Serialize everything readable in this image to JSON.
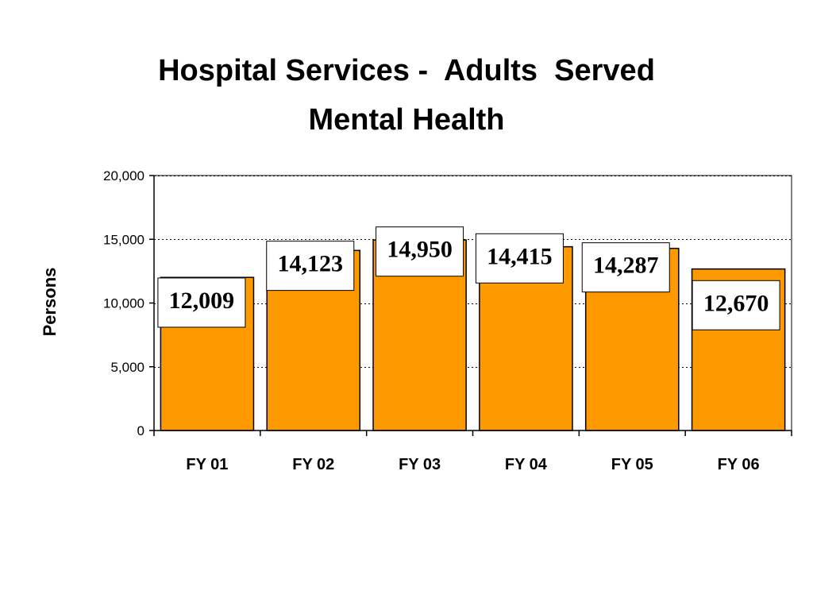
{
  "chart_data": {
    "type": "bar",
    "title_lines": [
      "Hospital Services -  Adults  Served",
      "Mental Health"
    ],
    "ylabel": "Persons",
    "xlabel": "",
    "categories": [
      "FY 01",
      "FY 02",
      "FY 03",
      "FY 04",
      "FY 05",
      "FY 06"
    ],
    "values": [
      12009,
      14123,
      14950,
      14415,
      14287,
      12670
    ],
    "data_labels": [
      "12,009",
      "14,123",
      "14,950",
      "14,415",
      "14,287",
      "12,670"
    ],
    "ylim": [
      0,
      20000
    ],
    "yticks": [
      0,
      5000,
      10000,
      15000,
      20000
    ],
    "ytick_labels": [
      "0",
      "5,000",
      "10,000",
      "15,000",
      "20,000"
    ],
    "grid": "horizontal dotted",
    "legend": "none",
    "colors": {
      "bar_fill": "#ff9900",
      "bar_edge": "#000000",
      "label_box_fill": "#ffffff",
      "grid": "#000000"
    }
  }
}
